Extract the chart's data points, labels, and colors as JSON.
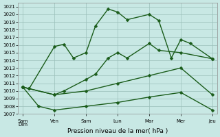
{
  "xlabel": "Pression niveau de la mer( hPa )",
  "bg_color": "#c8e8e4",
  "line_color": "#1a5c1a",
  "grid_color": "#9bbfba",
  "x_labels": [
    "Sam\nDim",
    "Ven",
    "Sam",
    "Lun",
    "Mar",
    "Mer",
    "Jeu"
  ],
  "x_tick_pos": [
    0,
    1,
    2,
    3,
    4,
    5,
    6
  ],
  "ylim": [
    1007,
    1021.5
  ],
  "yticks": [
    1007,
    1008,
    1009,
    1010,
    1011,
    1012,
    1013,
    1014,
    1015,
    1016,
    1017,
    1018,
    1019,
    1020,
    1021
  ],
  "series": [
    {
      "x": [
        0.0,
        0.2,
        1.0,
        1.3,
        1.6,
        2.0,
        2.3,
        2.7,
        3.0,
        3.3,
        4.0,
        4.3,
        4.7,
        5.0,
        5.3,
        6.0
      ],
      "y": [
        1010.5,
        1010.3,
        1015.8,
        1016.1,
        1014.3,
        1015.0,
        1018.5,
        1020.7,
        1020.3,
        1019.3,
        1020.0,
        1019.2,
        1014.3,
        1016.7,
        1016.2,
        1014.2
      ]
    },
    {
      "x": [
        0.0,
        0.2,
        1.0,
        1.3,
        2.0,
        2.3,
        2.7,
        3.0,
        3.3,
        4.0,
        4.3,
        5.0,
        6.0
      ],
      "y": [
        1010.5,
        1010.3,
        1009.5,
        1010.0,
        1011.5,
        1012.2,
        1014.3,
        1015.0,
        1014.3,
        1016.2,
        1015.3,
        1015.0,
        1014.2
      ]
    },
    {
      "x": [
        0.0,
        1.0,
        2.0,
        3.0,
        4.0,
        5.0,
        6.0
      ],
      "y": [
        1010.5,
        1009.5,
        1010.0,
        1011.0,
        1012.0,
        1013.0,
        1009.5
      ]
    },
    {
      "x": [
        0.0,
        0.5,
        1.0,
        2.0,
        3.0,
        4.0,
        5.0,
        6.0
      ],
      "y": [
        1010.5,
        1008.0,
        1007.5,
        1008.0,
        1008.5,
        1009.2,
        1009.8,
        1007.5
      ]
    }
  ],
  "marker": "D",
  "marker_size": 2.5,
  "linewidth": 1.0
}
